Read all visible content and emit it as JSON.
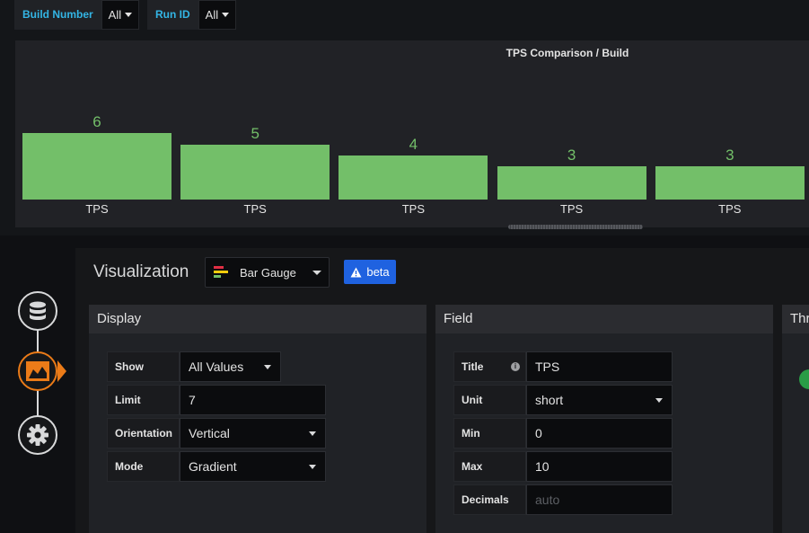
{
  "variables": [
    {
      "label": "Build Number",
      "value": "All"
    },
    {
      "label": "Run ID",
      "value": "All"
    }
  ],
  "chart_data": {
    "type": "bar",
    "title": "TPS Comparison / Build",
    "categories": [
      "TPS",
      "TPS",
      "TPS",
      "TPS",
      "TPS"
    ],
    "values": [
      6,
      5,
      4,
      3,
      3
    ],
    "ylim": [
      0,
      10
    ],
    "bar_color": "#73bf69",
    "orientation": "vertical"
  },
  "editor": {
    "title": "Visualization",
    "visualization": "Bar Gauge",
    "visualization_icon": "bar-gauge-icon",
    "badge": "beta",
    "badge_icon": "warning-icon",
    "nav": [
      {
        "name": "queries",
        "icon": "database-icon"
      },
      {
        "name": "visualization",
        "icon": "chart-area-icon",
        "active": true
      },
      {
        "name": "general",
        "icon": "gear-icon"
      }
    ]
  },
  "display": {
    "header": "Display",
    "rows": [
      {
        "label": "Show",
        "value": "All Values",
        "type": "select"
      },
      {
        "label": "Limit",
        "value": "7",
        "type": "input"
      },
      {
        "label": "Orientation",
        "value": "Vertical",
        "type": "select"
      },
      {
        "label": "Mode",
        "value": "Gradient",
        "type": "select"
      }
    ]
  },
  "field": {
    "header": "Field",
    "rows": [
      {
        "label": "Title",
        "value": "TPS",
        "type": "input",
        "info": true
      },
      {
        "label": "Unit",
        "value": "short",
        "type": "select"
      },
      {
        "label": "Min",
        "value": "0",
        "type": "input"
      },
      {
        "label": "Max",
        "value": "10",
        "type": "input"
      },
      {
        "label": "Decimals",
        "value": "",
        "placeholder": "auto",
        "type": "input"
      }
    ]
  },
  "thresholds": {
    "header": "Thr"
  },
  "colors": {
    "accent": "#33b5e5",
    "bar": "#73bf69",
    "badge": "#1f62e0",
    "active_nav": "#eb7b18"
  }
}
